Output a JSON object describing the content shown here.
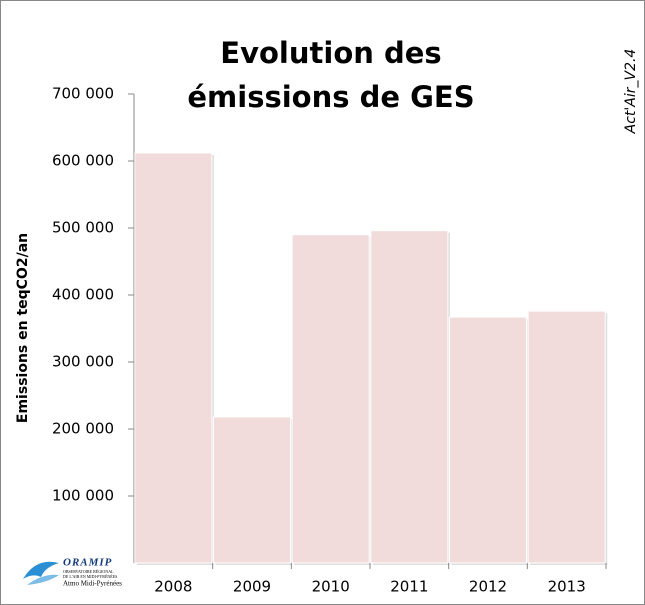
{
  "chart_data": {
    "type": "bar",
    "title": "Evolution des émissions de GES",
    "side_label": "Act'Air_V2.4",
    "y_label": "Emissions en teqCO2/an",
    "categories": [
      "2008",
      "2009",
      "2010",
      "2011",
      "2012",
      "2013"
    ],
    "values": [
      612000,
      218000,
      490000,
      496000,
      367000,
      376000
    ],
    "color": "#f2dcdb",
    "ylim": [
      0,
      700000
    ],
    "yticks": [
      {
        "value": 100000,
        "label": "100 000"
      },
      {
        "value": 200000,
        "label": "200 000"
      },
      {
        "value": 300000,
        "label": "300 000"
      },
      {
        "value": 400000,
        "label": "400 000"
      },
      {
        "value": 500000,
        "label": "500 000"
      },
      {
        "value": 600000,
        "label": "600 000"
      },
      {
        "value": 700000,
        "label": "700 000"
      }
    ],
    "grid": false
  },
  "logo": {
    "name": "ORAMIP",
    "line1": "OBSERVATOIRE RÉGIONAL",
    "line2": "DE L'AIR EN MIDI-PYRÉNÉES",
    "line3": "Atmo Midi-Pyrénées"
  }
}
